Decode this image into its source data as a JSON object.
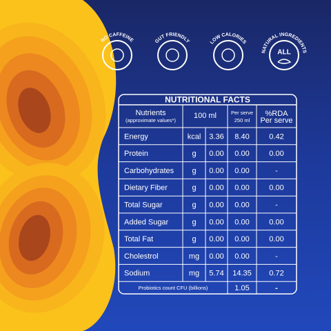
{
  "badges": [
    {
      "label": "NO CAFFEINE"
    },
    {
      "label": "GUT FRIENDLY"
    },
    {
      "label": "LOW CALORIES"
    },
    {
      "label": "NATURAL INGREDIENTS",
      "icon_text": "ALL"
    }
  ],
  "table": {
    "title": "NUTRITIONAL FACTS",
    "header": {
      "nutrients": "Nutrients",
      "nutrients_note": "(approximate values*)",
      "per_100": "100 ml",
      "per_serve": "Per serve",
      "serve_size": "250 ml",
      "rda": "%RDA",
      "rda_note": "Per serve"
    },
    "rows": [
      [
        "Energy",
        "kcal",
        "3.36",
        "8.40",
        "0.42"
      ],
      [
        "Protein",
        "g",
        "0.00",
        "0.00",
        "0.00"
      ],
      [
        "Carbohydrates",
        "g",
        "0.00",
        "0.00",
        "-"
      ],
      [
        "Dietary Fiber",
        "g",
        "0.00",
        "0.00",
        "0.00"
      ],
      [
        "Total Sugar",
        "g",
        "0.00",
        "0.00",
        "-"
      ],
      [
        "Added Sugar",
        "g",
        "0.00",
        "0.00",
        "0.00"
      ],
      [
        "Total Fat",
        "g",
        "0.00",
        "0.00",
        "0.00"
      ],
      [
        "Cholestrol",
        "mg",
        "0.00",
        "0.00",
        "-"
      ],
      [
        "Sodium",
        "mg",
        "5.74",
        "14.35",
        "0.72"
      ]
    ],
    "footer": [
      "Probiotics count CFU (billions)",
      "1.05",
      "-"
    ]
  }
}
